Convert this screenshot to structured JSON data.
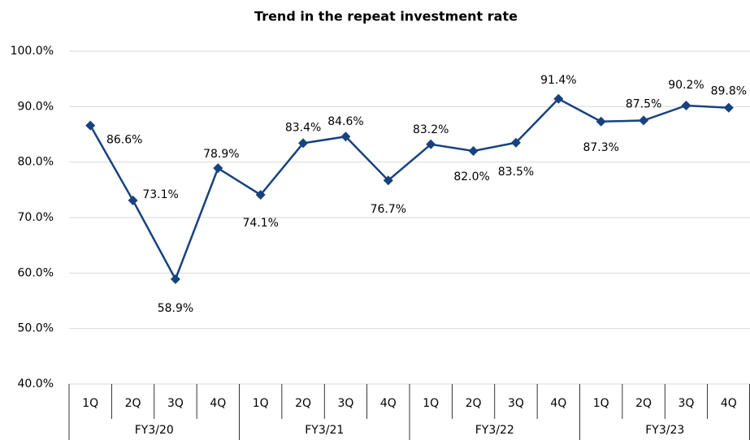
{
  "chart_data": {
    "type": "line",
    "title": "Trend in the repeat investment rate",
    "category_groups": [
      {
        "name": "FY3/20",
        "categories": [
          "1Q",
          "2Q",
          "3Q",
          "4Q"
        ]
      },
      {
        "name": "FY3/21",
        "categories": [
          "1Q",
          "2Q",
          "3Q",
          "4Q"
        ]
      },
      {
        "name": "FY3/22",
        "categories": [
          "1Q",
          "2Q",
          "3Q",
          "4Q"
        ]
      },
      {
        "name": "FY3/23",
        "categories": [
          "1Q",
          "2Q",
          "3Q",
          "4Q"
        ]
      }
    ],
    "values": [
      86.6,
      73.1,
      58.9,
      78.9,
      74.1,
      83.4,
      84.6,
      76.7,
      83.2,
      82.0,
      83.5,
      91.4,
      87.3,
      87.5,
      90.2,
      89.8
    ],
    "value_labels": [
      "86.6%",
      "73.1%",
      "58.9%",
      "78.9%",
      "74.1%",
      "83.4%",
      "84.6%",
      "76.7%",
      "83.2%",
      "82.0%",
      "83.5%",
      "91.4%",
      "87.3%",
      "87.5%",
      "90.2%",
      "89.8%"
    ],
    "color": "#17427e",
    "ylim": [
      40,
      100
    ],
    "yticks": [
      {
        "value": 40,
        "label": "40.0%"
      },
      {
        "value": 50,
        "label": "50.0%"
      },
      {
        "value": 60,
        "label": "60.0%"
      },
      {
        "value": 70,
        "label": "70.0%"
      },
      {
        "value": 80,
        "label": "80.0%"
      },
      {
        "value": 90,
        "label": "90.0%"
      },
      {
        "value": 100,
        "label": "100.0%"
      }
    ],
    "grid": true
  }
}
